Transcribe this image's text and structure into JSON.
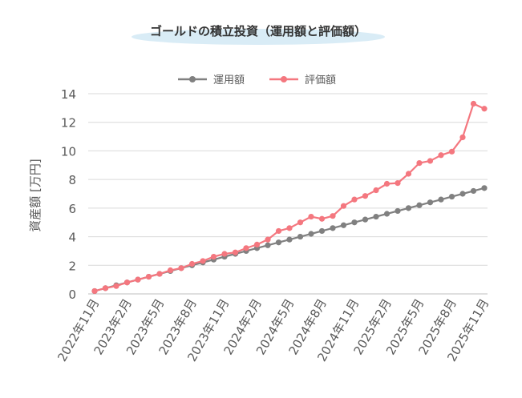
{
  "chart_data": {
    "type": "line",
    "title": "ゴールドの積立投資（運用額と評価額）",
    "xlabel": "",
    "ylabel": "資産額 [万円]",
    "ylim": [
      0,
      14
    ],
    "yticks": [
      0,
      2,
      4,
      6,
      8,
      10,
      12,
      14
    ],
    "grid": true,
    "legend_position": "top-center",
    "categories": [
      "2022年11月",
      "2022年12月",
      "2023年1月",
      "2023年2月",
      "2023年3月",
      "2023年4月",
      "2023年5月",
      "2023年6月",
      "2023年7月",
      "2023年8月",
      "2023年9月",
      "2023年10月",
      "2023年11月",
      "2023年12月",
      "2024年1月",
      "2024年2月",
      "2024年3月",
      "2024年4月",
      "2024年5月",
      "2024年6月",
      "2024年7月",
      "2024年8月",
      "2024年9月",
      "2024年10月",
      "2024年11月",
      "2024年12月",
      "2025年1月",
      "2025年2月",
      "2025年3月",
      "2025年4月",
      "2025年5月",
      "2025年6月",
      "2025年7月",
      "2025年8月",
      "2025年9月",
      "2025年10月",
      "2025年11月"
    ],
    "tick_labels": [
      "2022年11月",
      "2023年2月",
      "2023年5月",
      "2023年8月",
      "2023年11月",
      "2024年2月",
      "2024年5月",
      "2024年8月",
      "2024年11月",
      "2025年2月",
      "2025年5月",
      "2025年8月",
      "2025年11月"
    ],
    "series": [
      {
        "name": "運用額",
        "color": "#808080",
        "values": [
          0.2,
          0.4,
          0.6,
          0.8,
          1.0,
          1.2,
          1.4,
          1.6,
          1.8,
          2.0,
          2.2,
          2.4,
          2.6,
          2.8,
          3.0,
          3.2,
          3.4,
          3.6,
          3.8,
          4.0,
          4.2,
          4.4,
          4.6,
          4.8,
          5.0,
          5.2,
          5.4,
          5.6,
          5.8,
          6.0,
          6.2,
          6.4,
          6.6,
          6.8,
          7.0,
          7.2,
          7.4
        ]
      },
      {
        "name": "評価額",
        "color": "#f4777f",
        "values": [
          0.2,
          0.4,
          0.55,
          0.8,
          1.0,
          1.2,
          1.4,
          1.65,
          1.8,
          2.1,
          2.3,
          2.6,
          2.8,
          2.9,
          3.2,
          3.45,
          3.8,
          4.4,
          4.6,
          5.0,
          5.4,
          5.25,
          5.45,
          6.15,
          6.6,
          6.85,
          7.25,
          7.7,
          7.75,
          8.4,
          9.15,
          9.3,
          9.7,
          9.95,
          10.95,
          13.3,
          12.95
        ]
      }
    ]
  }
}
